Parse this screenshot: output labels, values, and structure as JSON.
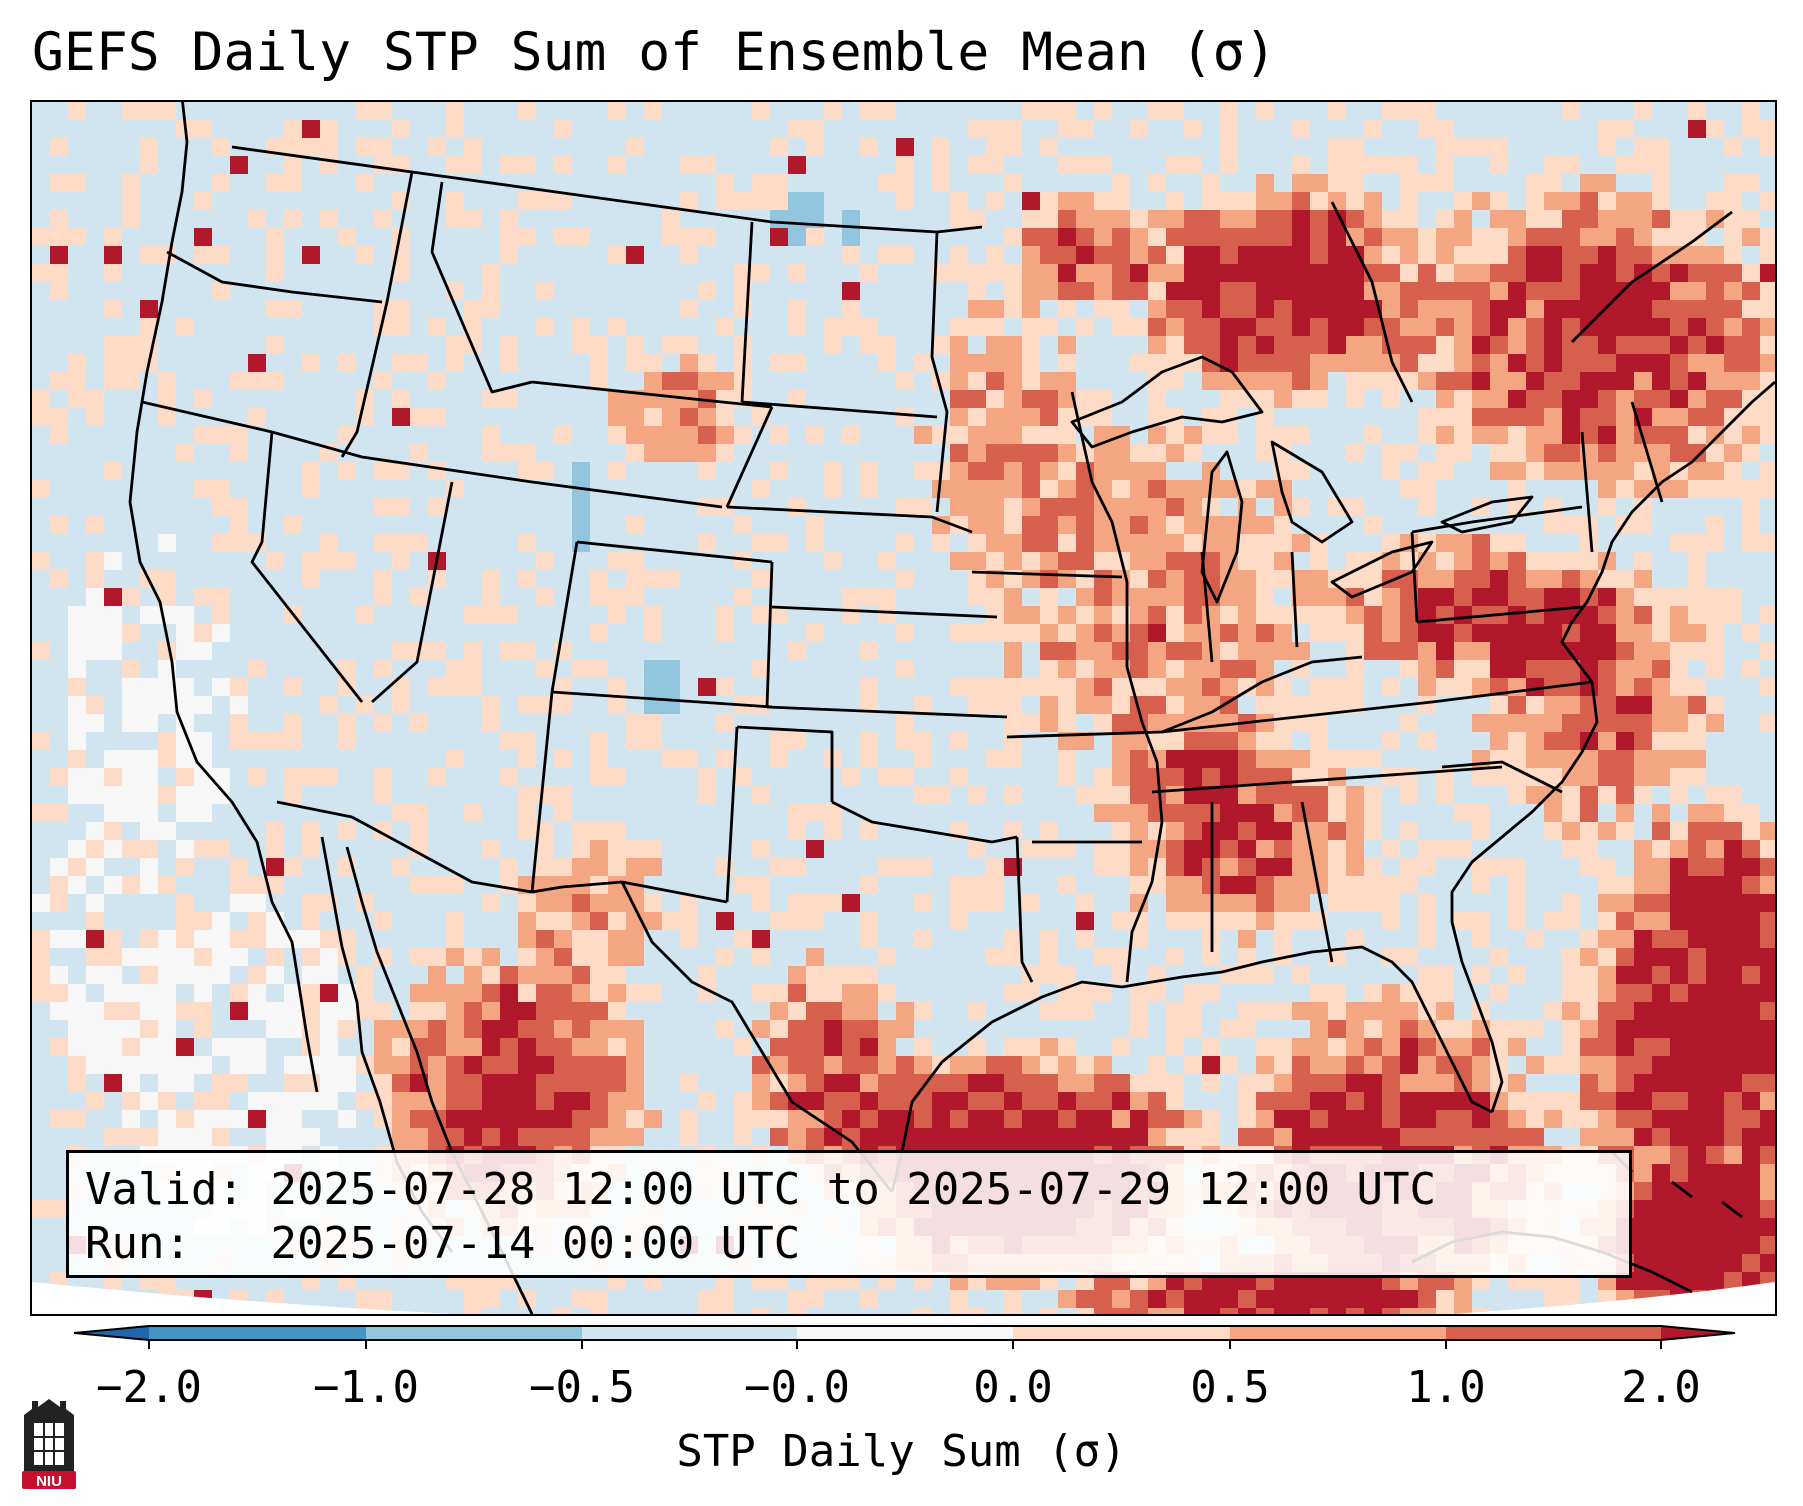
{
  "title": "GEFS Daily STP Sum of Ensemble Mean (σ)",
  "info_box": {
    "valid_label": "Valid:",
    "valid_value": "2025-07-28 12:00 UTC to 2025-07-29 12:00 UTC",
    "run_label": "Run:",
    "run_value": "2025-07-14 00:00 UTC"
  },
  "colorbar": {
    "label": "STP Daily Sum (σ)",
    "ticks": [
      "−2.0",
      "−1.0",
      "−0.5",
      "−0.0",
      "0.0",
      "0.5",
      "1.0",
      "2.0"
    ],
    "colors": [
      "#2166ac",
      "#4393c3",
      "#92c5de",
      "#d1e5f0",
      "#f7f7f7",
      "#fddbc7",
      "#f4a582",
      "#d6604d",
      "#b2182b"
    ]
  },
  "map": {
    "background_color": "#d1e5f0",
    "anomaly_levels": [
      {
        "name": "weak-positive",
        "color": "#fddbc7"
      },
      {
        "name": "moderate-positive",
        "color": "#f4a582"
      },
      {
        "name": "strong-positive",
        "color": "#d6604d"
      },
      {
        "name": "extreme-positive",
        "color": "#b2182b"
      },
      {
        "name": "near-zero",
        "color": "#f7f7f7"
      },
      {
        "name": "weak-negative",
        "color": "#92c5de"
      }
    ]
  },
  "logo": {
    "text": "NIU",
    "color": "#c8102e"
  }
}
